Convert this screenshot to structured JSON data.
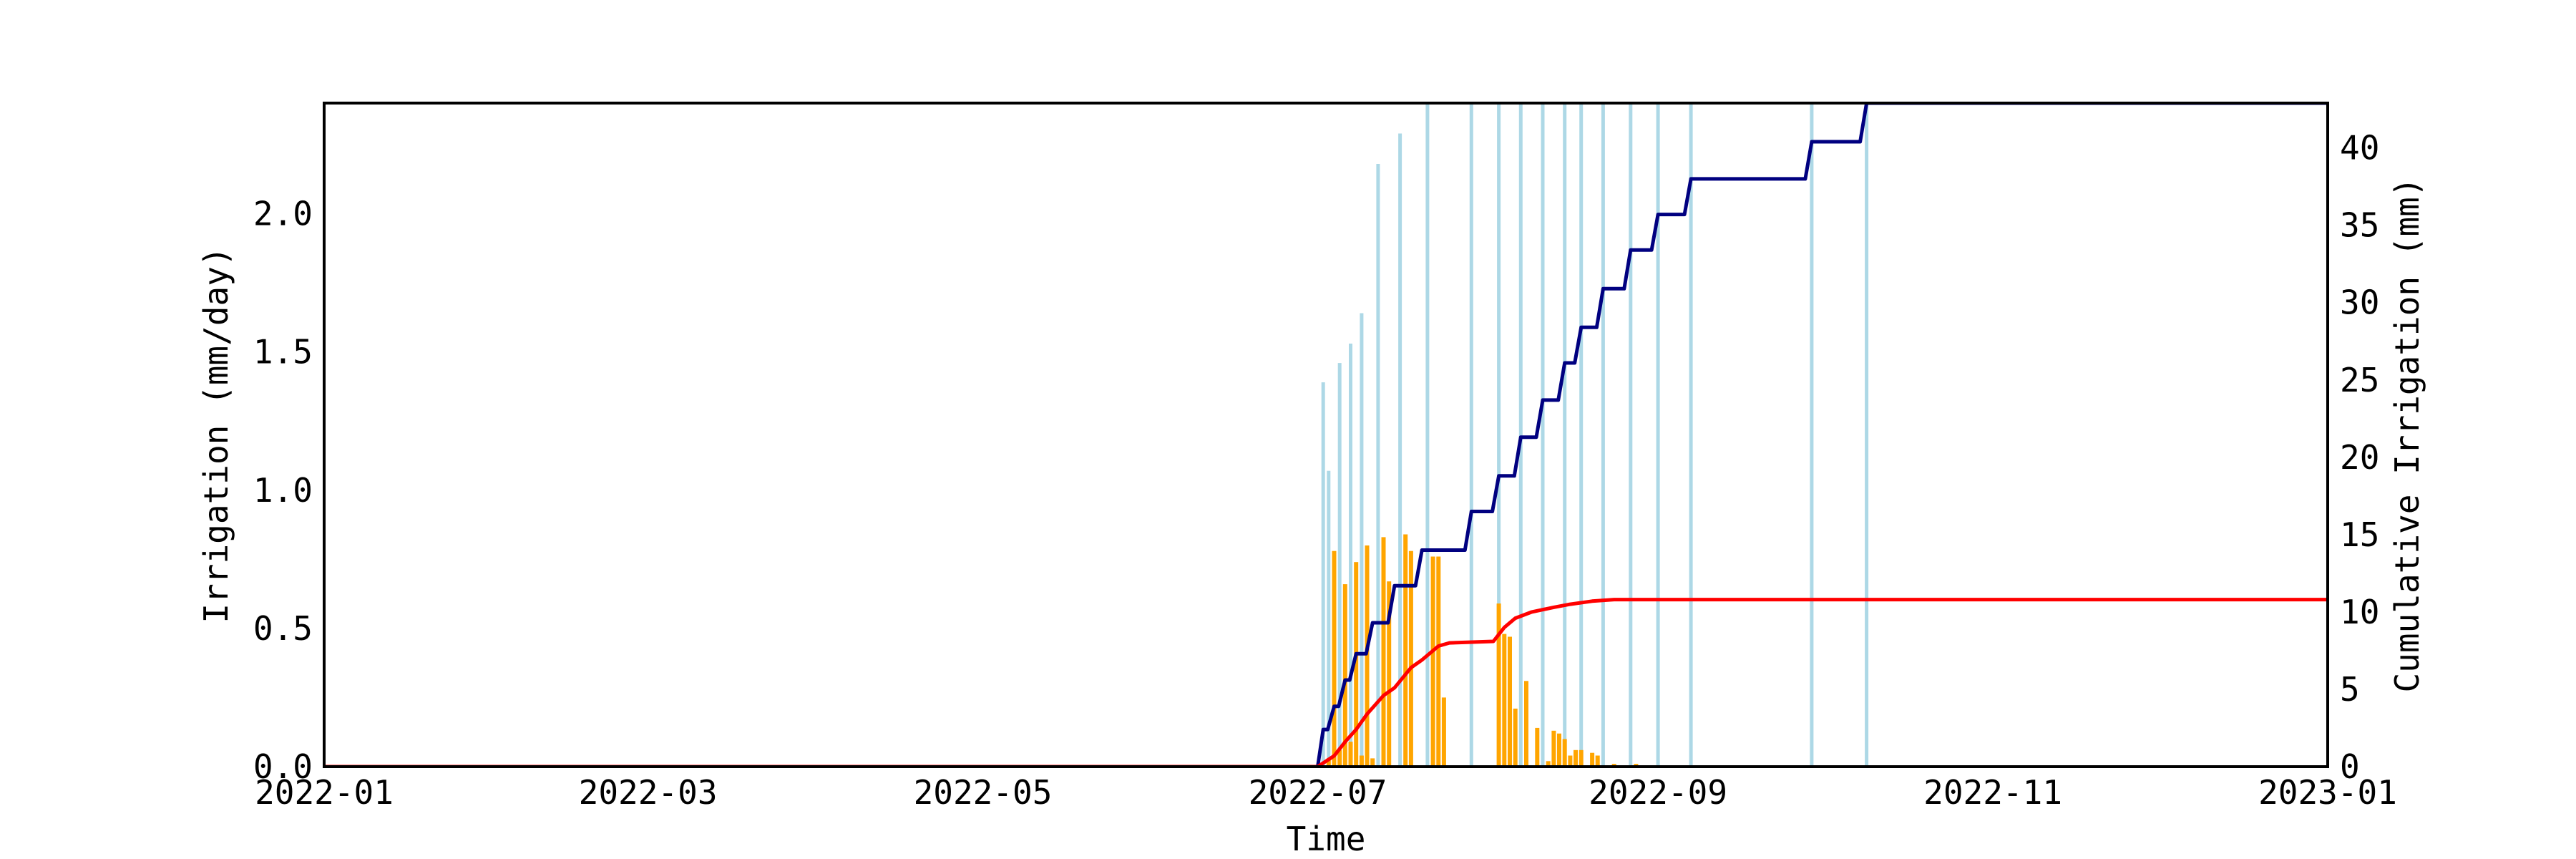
{
  "chart_data": {
    "type": "bar",
    "title": "",
    "xlabel": "Time",
    "ylabel": "Irrigation (mm/day)",
    "ylabel_right": "Cumulative Irrigation (mm)",
    "xlim": [
      "2022-01-01",
      "2023-01-01"
    ],
    "ylim": [
      0,
      2.4
    ],
    "ylim_right": [
      0,
      42.9
    ],
    "x_tick_labels": [
      "2022-01",
      "2022-03",
      "2022-05",
      "2022-07",
      "2022-09",
      "2022-11",
      "2023-01"
    ],
    "x_tick_dates": [
      "2022-01-01",
      "2022-03-01",
      "2022-05-01",
      "2022-07-01",
      "2022-09-01",
      "2022-11-01",
      "2023-01-01"
    ],
    "y_tick_labels": [
      "0.0",
      "0.5",
      "1.0",
      "1.5",
      "2.0"
    ],
    "y_ticks": [
      0,
      0.5,
      1.0,
      1.5,
      2.0
    ],
    "y_right_tick_labels": [
      "0",
      "5",
      "10",
      "15",
      "20",
      "25",
      "30",
      "35",
      "40"
    ],
    "y_right_ticks": [
      0,
      5,
      10,
      15,
      20,
      25,
      30,
      35,
      40
    ],
    "grid": false,
    "series": [
      {
        "name": "",
        "kind": "bar",
        "axis": "left",
        "color": "#add8e6",
        "points": [
          {
            "x": "2022-07-02",
            "y": 1.39
          },
          {
            "x": "2022-07-03",
            "y": 1.07
          },
          {
            "x": "2022-07-05",
            "y": 1.46
          },
          {
            "x": "2022-07-07",
            "y": 1.53
          },
          {
            "x": "2022-07-09",
            "y": 1.64
          },
          {
            "x": "2022-07-12",
            "y": 2.18
          },
          {
            "x": "2022-07-16",
            "y": 2.29
          },
          {
            "x": "2022-07-21",
            "y": 2.4
          },
          {
            "x": "2022-07-29",
            "y": 2.4
          },
          {
            "x": "2022-08-03",
            "y": 2.4
          },
          {
            "x": "2022-08-07",
            "y": 2.4
          },
          {
            "x": "2022-08-11",
            "y": 2.4
          },
          {
            "x": "2022-08-15",
            "y": 2.4
          },
          {
            "x": "2022-08-18",
            "y": 2.4
          },
          {
            "x": "2022-08-22",
            "y": 2.4
          },
          {
            "x": "2022-08-27",
            "y": 2.4
          },
          {
            "x": "2022-09-01",
            "y": 2.4
          },
          {
            "x": "2022-09-07",
            "y": 2.4
          },
          {
            "x": "2022-09-29",
            "y": 2.4
          },
          {
            "x": "2022-10-09",
            "y": 2.4
          }
        ]
      },
      {
        "name": "",
        "kind": "bar",
        "axis": "left",
        "color": "#ffa500",
        "points": [
          {
            "x": "2022-07-03",
            "y": 0.03
          },
          {
            "x": "2022-07-04",
            "y": 0.78
          },
          {
            "x": "2022-07-05",
            "y": 0.06
          },
          {
            "x": "2022-07-06",
            "y": 0.66
          },
          {
            "x": "2022-07-07",
            "y": 0.09
          },
          {
            "x": "2022-07-08",
            "y": 0.74
          },
          {
            "x": "2022-07-09",
            "y": 0.04
          },
          {
            "x": "2022-07-10",
            "y": 0.8
          },
          {
            "x": "2022-07-11",
            "y": 0.03
          },
          {
            "x": "2022-07-13",
            "y": 0.83
          },
          {
            "x": "2022-07-14",
            "y": 0.67
          },
          {
            "x": "2022-07-17",
            "y": 0.84
          },
          {
            "x": "2022-07-18",
            "y": 0.78
          },
          {
            "x": "2022-07-22",
            "y": 0.76
          },
          {
            "x": "2022-07-23",
            "y": 0.76
          },
          {
            "x": "2022-07-24",
            "y": 0.25
          },
          {
            "x": "2022-08-03",
            "y": 0.59
          },
          {
            "x": "2022-08-04",
            "y": 0.48
          },
          {
            "x": "2022-08-05",
            "y": 0.47
          },
          {
            "x": "2022-08-06",
            "y": 0.21
          },
          {
            "x": "2022-08-08",
            "y": 0.31
          },
          {
            "x": "2022-08-10",
            "y": 0.14
          },
          {
            "x": "2022-08-12",
            "y": 0.02
          },
          {
            "x": "2022-08-13",
            "y": 0.13
          },
          {
            "x": "2022-08-14",
            "y": 0.12
          },
          {
            "x": "2022-08-15",
            "y": 0.1
          },
          {
            "x": "2022-08-16",
            "y": 0.04
          },
          {
            "x": "2022-08-17",
            "y": 0.06
          },
          {
            "x": "2022-08-18",
            "y": 0.06
          },
          {
            "x": "2022-08-20",
            "y": 0.05
          },
          {
            "x": "2022-08-21",
            "y": 0.04
          },
          {
            "x": "2022-08-24",
            "y": 0.01
          },
          {
            "x": "2022-08-28",
            "y": 0.01
          }
        ]
      },
      {
        "name": "",
        "kind": "step-line",
        "axis": "right",
        "color": "#000080",
        "points": [
          {
            "x": "2022-07-01",
            "y": 0
          },
          {
            "x": "2022-07-02",
            "y": 2.4
          },
          {
            "x": "2022-07-04",
            "y": 3.9
          },
          {
            "x": "2022-07-06",
            "y": 5.6
          },
          {
            "x": "2022-07-08",
            "y": 7.3
          },
          {
            "x": "2022-07-11",
            "y": 9.3
          },
          {
            "x": "2022-07-15",
            "y": 11.7
          },
          {
            "x": "2022-07-20",
            "y": 14.0
          },
          {
            "x": "2022-07-29",
            "y": 16.5
          },
          {
            "x": "2022-08-03",
            "y": 18.8
          },
          {
            "x": "2022-08-07",
            "y": 21.3
          },
          {
            "x": "2022-08-11",
            "y": 23.7
          },
          {
            "x": "2022-08-15",
            "y": 26.1
          },
          {
            "x": "2022-08-18",
            "y": 28.4
          },
          {
            "x": "2022-08-22",
            "y": 30.9
          },
          {
            "x": "2022-08-27",
            "y": 33.4
          },
          {
            "x": "2022-09-01",
            "y": 35.7
          },
          {
            "x": "2022-09-07",
            "y": 38.0
          },
          {
            "x": "2022-09-29",
            "y": 40.4
          },
          {
            "x": "2022-10-09",
            "y": 42.9
          },
          {
            "x": "2023-01-01",
            "y": 42.9
          }
        ]
      },
      {
        "name": "",
        "kind": "line",
        "axis": "right",
        "color": "#ff0000",
        "points": [
          {
            "x": "2022-07-01",
            "y": 0
          },
          {
            "x": "2022-07-04",
            "y": 0.7
          },
          {
            "x": "2022-07-06",
            "y": 1.6
          },
          {
            "x": "2022-07-08",
            "y": 2.4
          },
          {
            "x": "2022-07-10",
            "y": 3.4
          },
          {
            "x": "2022-07-13",
            "y": 4.6
          },
          {
            "x": "2022-07-15",
            "y": 5.1
          },
          {
            "x": "2022-07-18",
            "y": 6.4
          },
          {
            "x": "2022-07-20",
            "y": 6.9
          },
          {
            "x": "2022-07-23",
            "y": 7.8
          },
          {
            "x": "2022-07-25",
            "y": 8.0
          },
          {
            "x": "2022-08-02",
            "y": 8.1
          },
          {
            "x": "2022-08-04",
            "y": 9.0
          },
          {
            "x": "2022-08-06",
            "y": 9.6
          },
          {
            "x": "2022-08-09",
            "y": 10.0
          },
          {
            "x": "2022-08-13",
            "y": 10.3
          },
          {
            "x": "2022-08-16",
            "y": 10.5
          },
          {
            "x": "2022-08-20",
            "y": 10.7
          },
          {
            "x": "2022-08-24",
            "y": 10.8
          },
          {
            "x": "2023-01-01",
            "y": 10.8
          }
        ]
      }
    ]
  }
}
